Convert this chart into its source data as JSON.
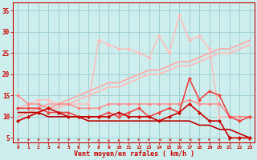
{
  "background_color": "#cdeeed",
  "grid_color": "#a0d0d0",
  "xlabel": "Vent moyen/en rafales ( km/h )",
  "xlabel_color": "#cc0000",
  "tick_color": "#cc0000",
  "ylim": [
    4,
    37
  ],
  "xlim": [
    -0.5,
    23.5
  ],
  "yticks": [
    5,
    10,
    15,
    20,
    25,
    30,
    35
  ],
  "xticks": [
    0,
    1,
    2,
    3,
    4,
    5,
    6,
    7,
    8,
    9,
    10,
    11,
    12,
    13,
    14,
    15,
    16,
    17,
    18,
    19,
    20,
    21,
    22,
    23
  ],
  "lines": [
    {
      "x": [
        0,
        1,
        2,
        3,
        4,
        5,
        6,
        7,
        8,
        9,
        10,
        11,
        12,
        13,
        14,
        15,
        16,
        17,
        18,
        19,
        20,
        21,
        22,
        23
      ],
      "y": [
        9,
        10,
        11,
        12,
        12,
        13,
        14,
        15,
        16,
        17,
        17,
        18,
        19,
        20,
        20,
        21,
        22,
        22,
        23,
        24,
        25,
        25,
        26,
        27
      ],
      "color": "#ffbbbb",
      "lw": 1.3,
      "marker": null,
      "ms": 0,
      "zorder": 2
    },
    {
      "x": [
        0,
        1,
        2,
        3,
        4,
        5,
        6,
        7,
        8,
        9,
        10,
        11,
        12,
        13,
        14,
        15,
        16,
        17,
        18,
        19,
        20,
        21,
        22,
        23
      ],
      "y": [
        10,
        11,
        12,
        13,
        13,
        14,
        15,
        16,
        17,
        18,
        18,
        19,
        20,
        21,
        21,
        22,
        23,
        23,
        24,
        25,
        26,
        26,
        27,
        28
      ],
      "color": "#ffaaaa",
      "lw": 1.3,
      "marker": null,
      "ms": 0,
      "zorder": 2
    },
    {
      "x": [
        0,
        1,
        2,
        3,
        4,
        5,
        6,
        7,
        8,
        9,
        10,
        11,
        12,
        13,
        14,
        15,
        16,
        17,
        18,
        19,
        20,
        21,
        22,
        23
      ],
      "y": [
        12,
        13,
        14,
        14,
        13,
        13,
        13,
        13,
        28,
        27,
        26,
        26,
        25,
        24,
        29,
        25,
        34,
        28,
        29,
        26,
        10,
        10,
        10,
        10
      ],
      "color": "#ffbbbb",
      "lw": 1.0,
      "marker": "D",
      "ms": 2,
      "zorder": 3
    },
    {
      "x": [
        0,
        1,
        2,
        3,
        4,
        5,
        6,
        7,
        8,
        9,
        10,
        11,
        12,
        13,
        14,
        15,
        16,
        17,
        18,
        19,
        20,
        21,
        22,
        23
      ],
      "y": [
        15,
        13,
        13,
        12,
        13,
        13,
        12,
        12,
        12,
        13,
        13,
        13,
        13,
        13,
        13,
        13,
        13,
        14,
        13,
        13,
        13,
        10,
        10,
        10
      ],
      "color": "#ff8888",
      "lw": 1.0,
      "marker": "D",
      "ms": 2,
      "zorder": 3
    },
    {
      "x": [
        0,
        1,
        2,
        3,
        4,
        5,
        6,
        7,
        8,
        9,
        10,
        11,
        12,
        13,
        14,
        15,
        16,
        17,
        18,
        19,
        20,
        21,
        22,
        23
      ],
      "y": [
        12,
        12,
        12,
        11,
        11,
        11,
        10,
        10,
        10,
        11,
        10,
        11,
        12,
        10,
        11,
        12,
        11,
        19,
        14,
        16,
        15,
        10,
        9,
        10
      ],
      "color": "#ee4444",
      "lw": 1.2,
      "marker": "D",
      "ms": 2,
      "zorder": 4
    },
    {
      "x": [
        0,
        1,
        2,
        3,
        4,
        5,
        6,
        7,
        8,
        9,
        10,
        11,
        12,
        13,
        14,
        15,
        16,
        17,
        18,
        19,
        20,
        21,
        22,
        23
      ],
      "y": [
        11,
        11,
        11,
        10,
        10,
        10,
        10,
        9,
        9,
        9,
        9,
        9,
        9,
        9,
        9,
        9,
        9,
        9,
        8,
        8,
        7,
        7,
        6,
        5
      ],
      "color": "#bb0000",
      "lw": 1.2,
      "marker": null,
      "ms": 0,
      "zorder": 4
    },
    {
      "x": [
        0,
        1,
        2,
        3,
        4,
        5,
        6,
        7,
        8,
        9,
        10,
        11,
        12,
        13,
        14,
        15,
        16,
        17,
        18,
        19,
        20,
        21,
        22,
        23
      ],
      "y": [
        9,
        10,
        11,
        12,
        11,
        10,
        10,
        10,
        10,
        10,
        11,
        10,
        10,
        10,
        9,
        10,
        11,
        13,
        11,
        9,
        9,
        5,
        5,
        5
      ],
      "color": "#cc0000",
      "lw": 1.2,
      "marker": "D",
      "ms": 2,
      "zorder": 5
    }
  ],
  "directions": [
    45,
    45,
    45,
    45,
    45,
    45,
    45,
    45,
    0,
    0,
    0,
    315,
    315,
    315,
    270,
    270,
    270,
    270,
    315,
    315,
    315,
    315,
    315,
    315
  ]
}
